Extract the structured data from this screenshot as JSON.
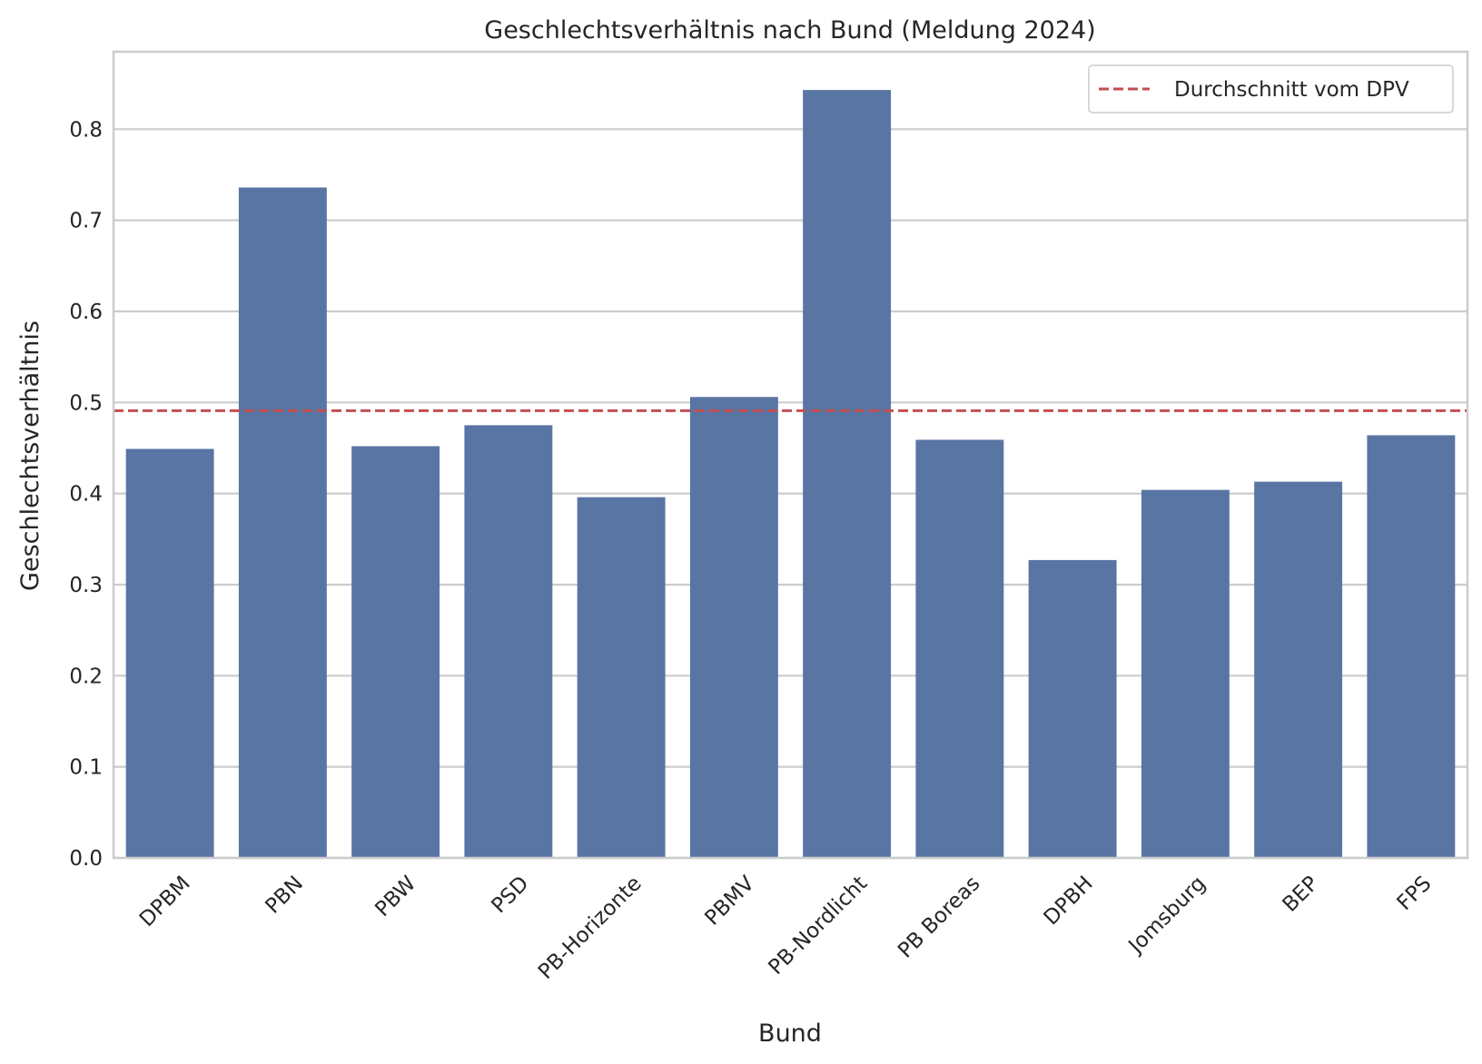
{
  "chart_data": {
    "type": "bar",
    "title": "Geschlechtsverhältnis nach Bund (Meldung 2024)",
    "xlabel": "Bund",
    "ylabel": "Geschlechtsverhältnis",
    "categories": [
      "DPBM",
      "PBN",
      "PBW",
      "PSD",
      "PB-Horizonte",
      "PBMV",
      "PB-Nordlicht",
      "PB Boreas",
      "DPBH",
      "Jomsburg",
      "BEP",
      "FPS"
    ],
    "values": [
      0.449,
      0.736,
      0.452,
      0.475,
      0.396,
      0.506,
      0.843,
      0.459,
      0.327,
      0.404,
      0.413,
      0.464
    ],
    "ylim": [
      0,
      0.885
    ],
    "yticks": [
      "0.0",
      "0.1",
      "0.2",
      "0.3",
      "0.4",
      "0.5",
      "0.6",
      "0.7",
      "0.8"
    ],
    "reference_line": {
      "label": "Durchschnitt vom DPV",
      "value": 0.491,
      "color": "#c44e52",
      "style": "dashed"
    },
    "bar_color": "#5975a4",
    "grid": "horizontal",
    "legend_position": "top-right",
    "xtick_rotation": 45
  }
}
